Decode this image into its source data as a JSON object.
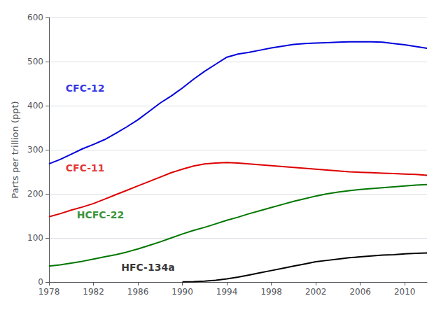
{
  "chart_data": {
    "type": "line",
    "ylabel": "Parts per trillion (ppt)",
    "x": [
      1978,
      1979,
      1980,
      1981,
      1982,
      1983,
      1984,
      1985,
      1986,
      1987,
      1988,
      1989,
      1990,
      1991,
      1992,
      1993,
      1994,
      1995,
      1996,
      1997,
      1998,
      1999,
      2000,
      2001,
      2002,
      2003,
      2004,
      2005,
      2006,
      2007,
      2008,
      2009,
      2010,
      2011,
      2012
    ],
    "series": [
      {
        "name": "CFC-12",
        "color": "#0000dd",
        "values": [
          268,
          278,
          290,
          302,
          312,
          323,
          337,
          352,
          368,
          387,
          406,
          422,
          440,
          460,
          478,
          494,
          510,
          517,
          521,
          526,
          531,
          535,
          539,
          541,
          542,
          543,
          544,
          545,
          545,
          545,
          544,
          541,
          538,
          534,
          530
        ]
      },
      {
        "name": "CFC-11",
        "color": "#dd0000",
        "values": [
          148,
          155,
          163,
          170,
          178,
          188,
          198,
          208,
          218,
          228,
          238,
          248,
          256,
          263,
          268,
          270,
          271,
          270,
          268,
          266,
          264,
          262,
          260,
          258,
          256,
          254,
          252,
          250,
          249,
          248,
          247,
          246,
          245,
          244,
          242
        ]
      },
      {
        "name": "HCFC-22",
        "color": "#007700",
        "values": [
          36,
          39,
          43,
          47,
          52,
          57,
          62,
          68,
          75,
          83,
          91,
          100,
          109,
          117,
          124,
          132,
          140,
          147,
          155,
          162,
          169,
          176,
          183,
          189,
          195,
          200,
          204,
          207,
          210,
          212,
          214,
          216,
          218,
          220,
          221
        ]
      },
      {
        "name": "HFC-134a",
        "color": "#000000",
        "values": [
          null,
          null,
          null,
          null,
          null,
          null,
          null,
          null,
          null,
          null,
          null,
          null,
          0.3,
          0.8,
          2.0,
          4.0,
          7.0,
          11,
          16,
          21,
          26,
          31,
          36,
          41,
          46,
          49,
          52,
          55,
          57,
          59,
          61,
          62,
          64,
          65,
          66
        ]
      }
    ],
    "annotations": [
      {
        "text": "CFC-12",
        "x": 1979.5,
        "y": 440,
        "color": "#0000dd"
      },
      {
        "text": "CFC-11",
        "x": 1979.5,
        "y": 258,
        "color": "#dd0000"
      },
      {
        "text": "HCFC-22",
        "x": 1980.5,
        "y": 152,
        "color": "#007700"
      },
      {
        "text": "HFC-134a",
        "x": 1984.5,
        "y": 33,
        "color": "#000000"
      }
    ],
    "xlim": [
      1978,
      2012
    ],
    "xticks": [
      1978,
      1982,
      1986,
      1990,
      1994,
      1998,
      2002,
      2006,
      2010
    ],
    "ylim": [
      0,
      600
    ],
    "yticks": [
      0,
      100,
      200,
      300,
      400,
      500,
      600
    ],
    "grid": true,
    "legend": false
  }
}
